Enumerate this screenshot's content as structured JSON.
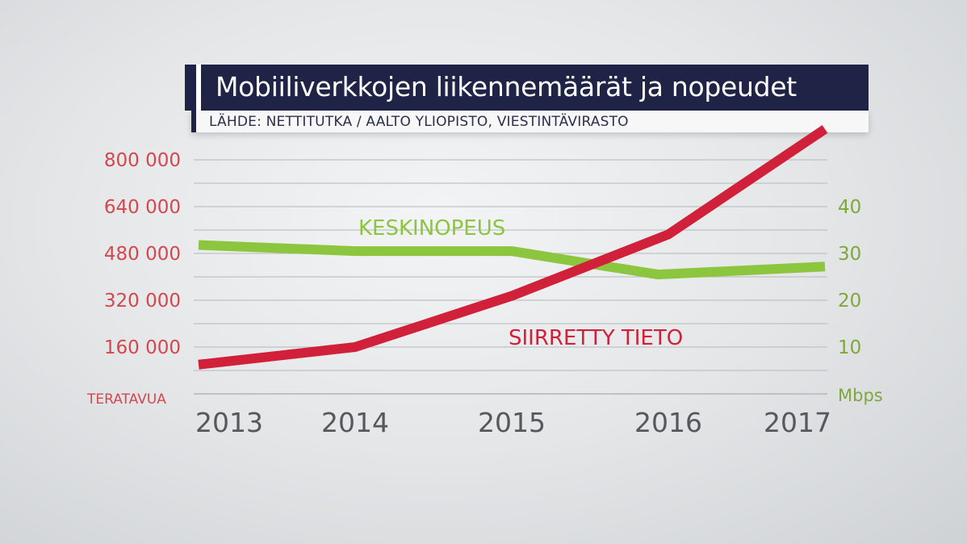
{
  "header": {
    "title": "Mobiiliverkkojen liikennemäärät ja nopeudet",
    "source": "LÄHDE: NETTITUTKA / AALTO YLIOPISTO, VIESTINTÄVIRASTO"
  },
  "chart_data": {
    "type": "line",
    "title": "Mobiiliverkkojen liikennemäärät ja nopeudet",
    "subtitle": "LÄHDE: NETTITUTKA / AALTO YLIOPISTO, VIESTINTÄVIRASTO",
    "categories": [
      "2013",
      "2014",
      "2015",
      "2016",
      "2017"
    ],
    "y_left": {
      "unit": "TERATAVUA",
      "range": [
        0,
        800000
      ],
      "ticks": [
        160000,
        320000,
        480000,
        640000,
        800000
      ],
      "tick_labels": [
        "160 000",
        "320 000",
        "480 000",
        "640 000",
        "800 000"
      ]
    },
    "y_right": {
      "unit": "Mbps",
      "range": [
        0,
        50
      ],
      "ticks": [
        10,
        20,
        30,
        40
      ],
      "tick_labels": [
        "10",
        "20",
        "30",
        "40"
      ]
    },
    "grid": true,
    "series": [
      {
        "name": "KESKINOPEUS",
        "axis": "right",
        "color": "#8cc63f",
        "values": [
          31.8,
          30.5,
          30.5,
          25.5,
          27.2
        ]
      },
      {
        "name": "SIIRRETTY TIETO",
        "axis": "left",
        "color": "#d0203a",
        "values": [
          100000,
          160000,
          335000,
          545000,
          905000
        ]
      }
    ],
    "colors": {
      "left_axis": "#d4474f",
      "right_axis": "#7fa83a",
      "x_axis": "#55585d",
      "grid": "#bfc1c4"
    }
  }
}
